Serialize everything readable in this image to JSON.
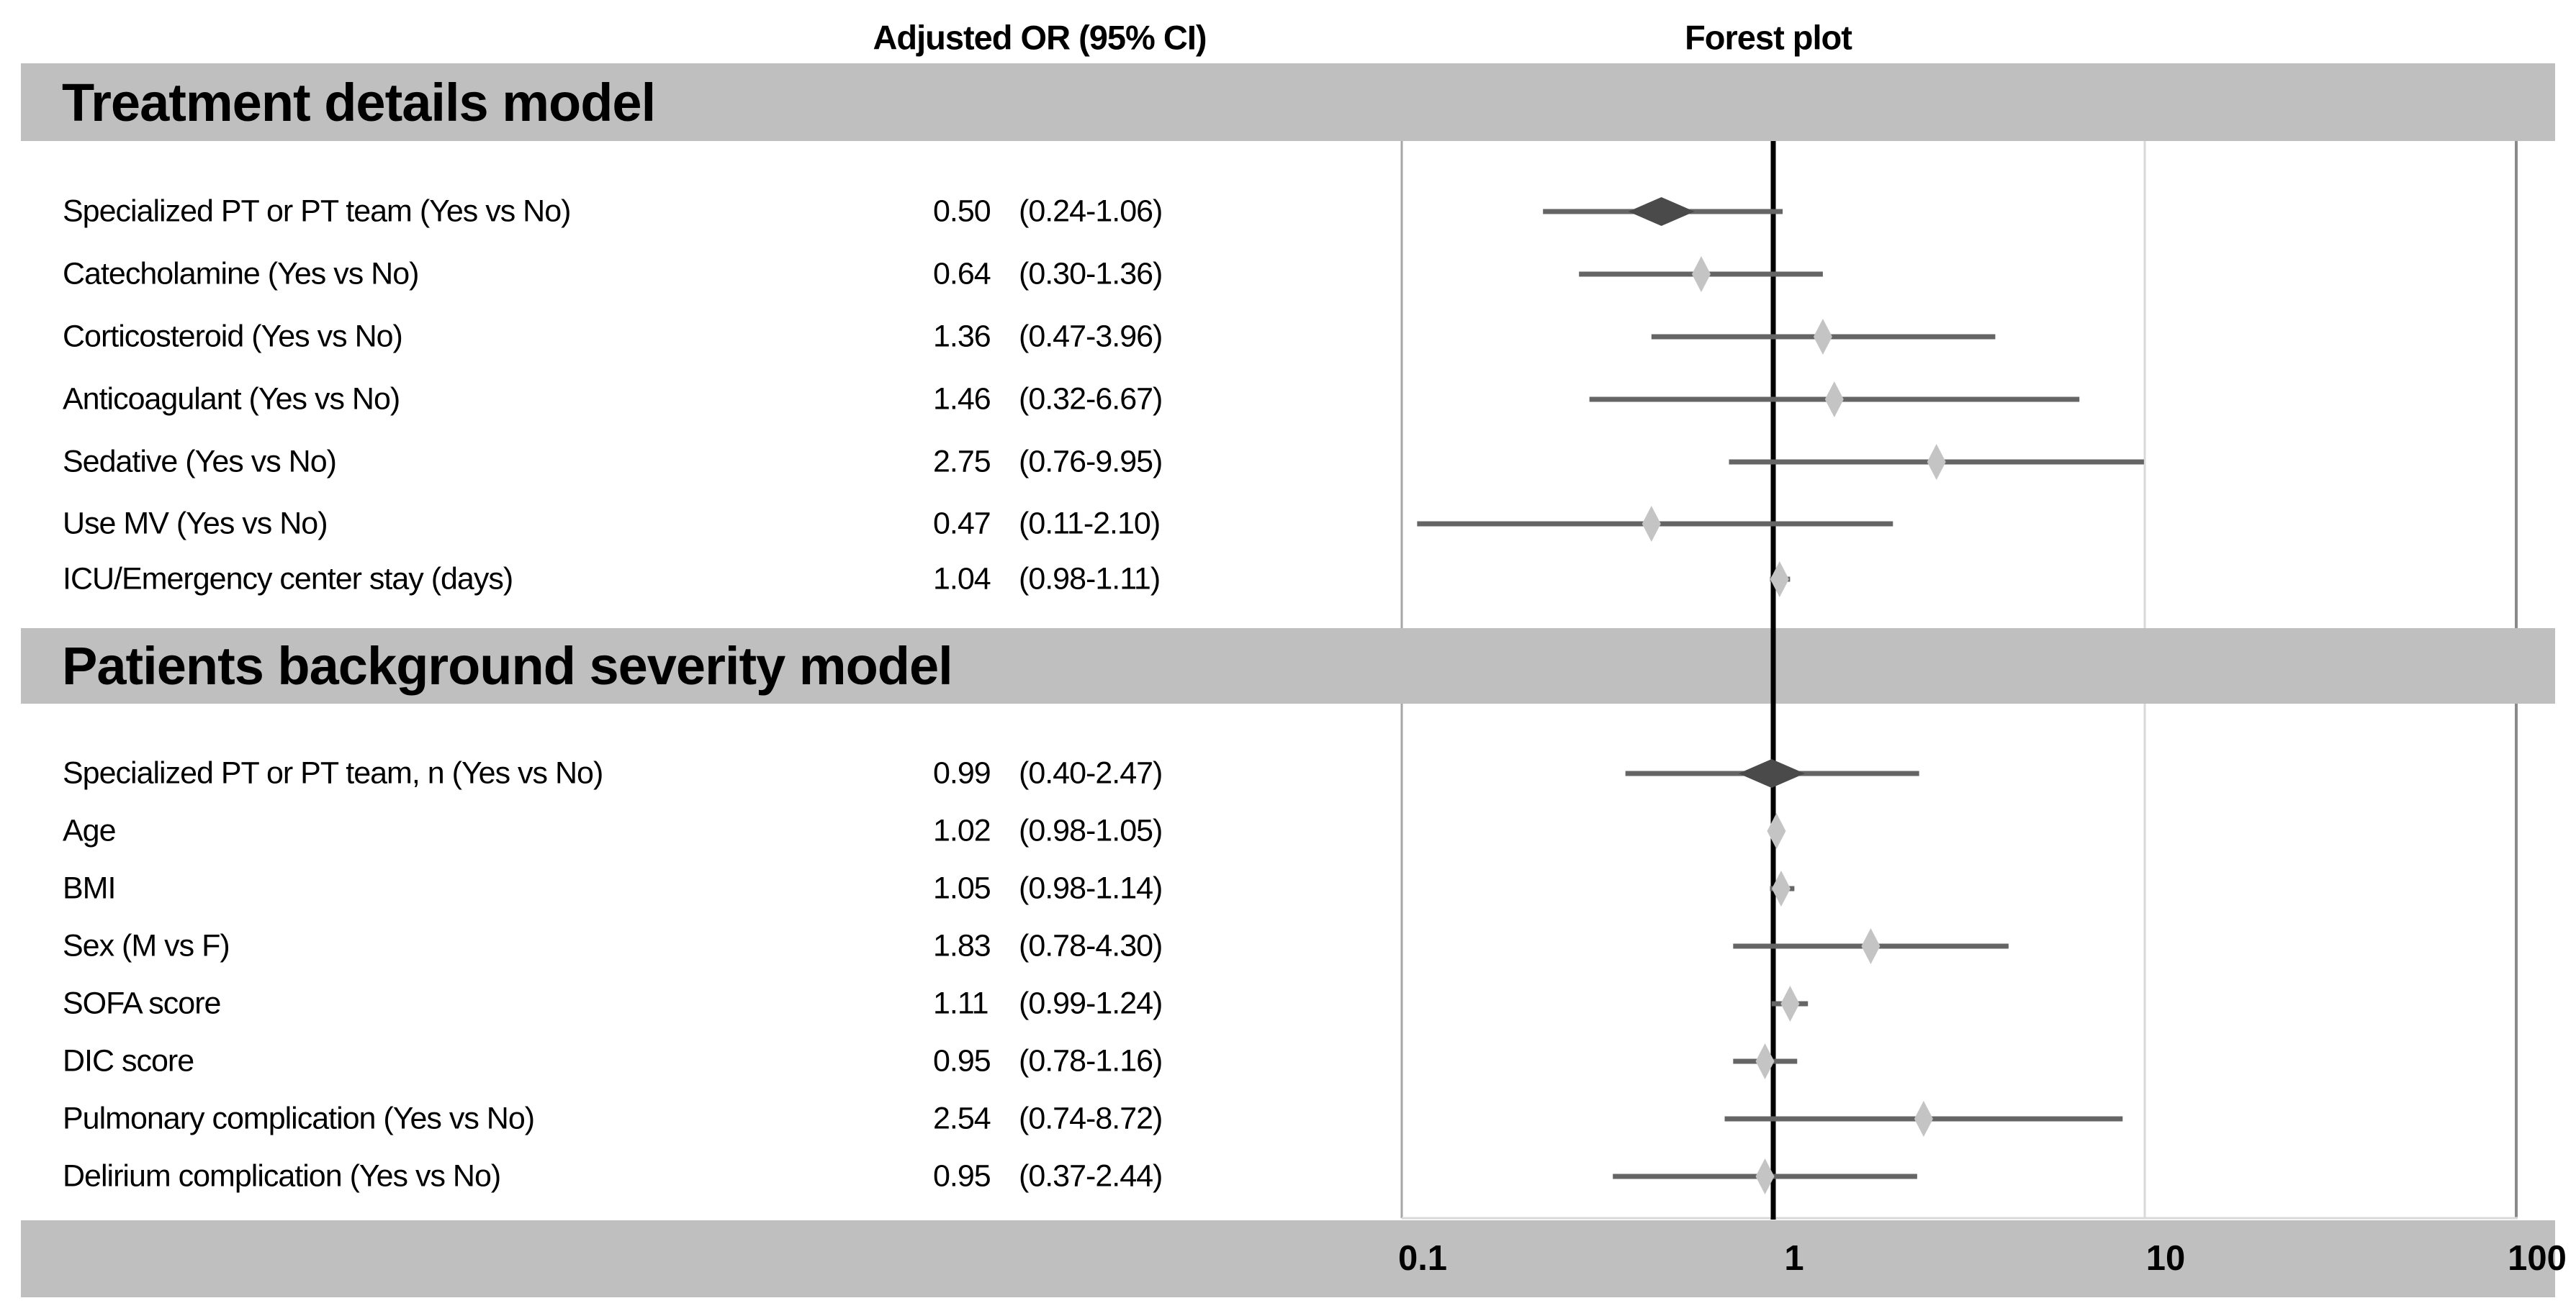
{
  "header": {
    "or_column": "Adjusted OR (95% CI)",
    "plot_column": "Forest plot"
  },
  "colors": {
    "band_gray": "#bfbfbf",
    "ci_line": "#656565",
    "large_diamond": "#4a4a4a",
    "small_diamond": "#c4c4c4",
    "reference_line": "#000000",
    "gridline_light": "#d9d9d9",
    "plot_border_left": "#a6a6a6",
    "plot_border_right": "#8a8a8a"
  },
  "chart_data": {
    "type": "forest",
    "title": "Forest plot",
    "x_axis": {
      "scale": "log10",
      "ticks": [
        0.1,
        1,
        10,
        100
      ],
      "tick_labels": [
        "0.1",
        "1",
        "10",
        "100"
      ],
      "reference_line": 1,
      "range": [
        0.1,
        100
      ]
    },
    "sections": [
      {
        "title": "Treatment details model",
        "rows": [
          {
            "label": "Specialized PT or PT team (Yes vs No)",
            "or_text": "0.50",
            "ci_text": "(0.24-1.06)",
            "or": 0.5,
            "ci_low": 0.24,
            "ci_high": 1.06,
            "marker": "large"
          },
          {
            "label": "Catecholamine (Yes vs No)",
            "or_text": "0.64",
            "ci_text": "(0.30-1.36)",
            "or": 0.64,
            "ci_low": 0.3,
            "ci_high": 1.36,
            "marker": "small"
          },
          {
            "label": "Corticosteroid (Yes vs No)",
            "or_text": "1.36",
            "ci_text": "(0.47-3.96)",
            "or": 1.36,
            "ci_low": 0.47,
            "ci_high": 3.96,
            "marker": "small"
          },
          {
            "label": "Anticoagulant (Yes vs No)",
            "or_text": "1.46",
            "ci_text": "(0.32-6.67)",
            "or": 1.46,
            "ci_low": 0.32,
            "ci_high": 6.67,
            "marker": "small"
          },
          {
            "label": "Sedative (Yes vs No)",
            "or_text": "2.75",
            "ci_text": "(0.76-9.95)",
            "or": 2.75,
            "ci_low": 0.76,
            "ci_high": 9.95,
            "marker": "small"
          },
          {
            "label": "Use MV (Yes vs No)",
            "or_text": "0.47",
            "ci_text": "(0.11-2.10)",
            "or": 0.47,
            "ci_low": 0.11,
            "ci_high": 2.1,
            "marker": "small"
          },
          {
            "label": "ICU/Emergency center stay (days)",
            "or_text": "1.04",
            "ci_text": "(0.98-1.11)",
            "or": 1.04,
            "ci_low": 0.98,
            "ci_high": 1.11,
            "marker": "small"
          }
        ]
      },
      {
        "title": "Patients background severity model",
        "rows": [
          {
            "label": "Specialized PT or PT team, n (Yes vs No)",
            "or_text": "0.99",
            "ci_text": "(0.40-2.47)",
            "or": 0.99,
            "ci_low": 0.4,
            "ci_high": 2.47,
            "marker": "large"
          },
          {
            "label": "Age",
            "or_text": "1.02",
            "ci_text": "(0.98-1.05)",
            "or": 1.02,
            "ci_low": 0.98,
            "ci_high": 1.05,
            "marker": "small"
          },
          {
            "label": "BMI",
            "or_text": "1.05",
            "ci_text": "(0.98-1.14)",
            "or": 1.05,
            "ci_low": 0.98,
            "ci_high": 1.14,
            "marker": "small"
          },
          {
            "label": "Sex (M vs F)",
            "or_text": "1.83",
            "ci_text": "(0.78-4.30)",
            "or": 1.83,
            "ci_low": 0.78,
            "ci_high": 4.3,
            "marker": "small"
          },
          {
            "label": "SOFA score",
            "or_text": "1.11",
            "ci_text": "(0.99-1.24)",
            "or": 1.11,
            "ci_low": 0.99,
            "ci_high": 1.24,
            "marker": "small"
          },
          {
            "label": "DIC score",
            "or_text": "0.95",
            "ci_text": "(0.78-1.16)",
            "or": 0.95,
            "ci_low": 0.78,
            "ci_high": 1.16,
            "marker": "small"
          },
          {
            "label": "Pulmonary complication (Yes vs No)",
            "or_text": "2.54",
            "ci_text": "(0.74-8.72)",
            "or": 2.54,
            "ci_low": 0.74,
            "ci_high": 8.72,
            "marker": "small"
          },
          {
            "label": "Delirium complication (Yes vs No)",
            "or_text": "0.95",
            "ci_text": "(0.37-2.44)",
            "or": 0.95,
            "ci_low": 0.37,
            "ci_high": 2.44,
            "marker": "small"
          }
        ]
      }
    ],
    "legend": null,
    "grid": "vertical-log-decades"
  }
}
